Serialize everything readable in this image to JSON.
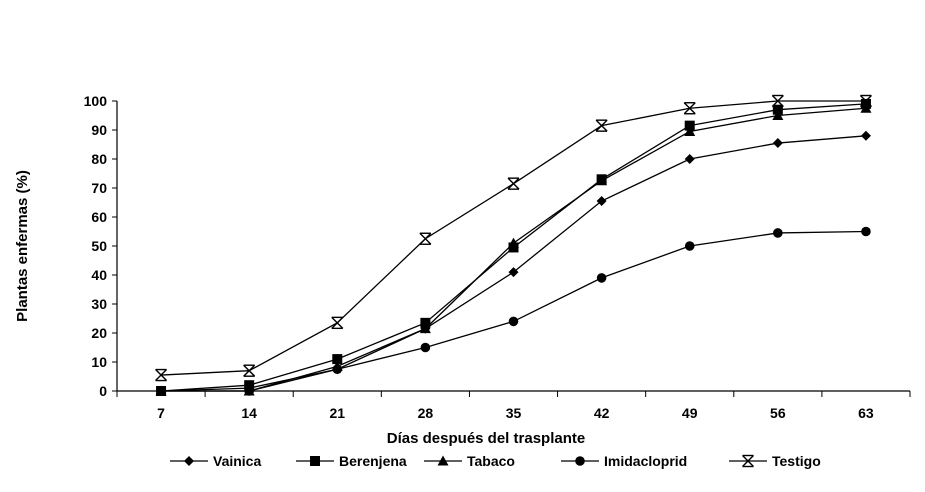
{
  "chart_data": {
    "type": "line",
    "title": "",
    "xlabel": "Días después del trasplante",
    "ylabel": "Plantas enfermas (%)",
    "categories": [
      "7",
      "14",
      "21",
      "28",
      "35",
      "42",
      "49",
      "56",
      "63"
    ],
    "ylim": [
      0,
      100
    ],
    "yticks": [
      "0",
      "10",
      "20",
      "30",
      "40",
      "50",
      "60",
      "70",
      "80",
      "90",
      "100"
    ],
    "grid": false,
    "legend_position": "bottom",
    "series": [
      {
        "name": "Vainica",
        "marker": "diamond",
        "values": [
          0,
          1,
          7.5,
          21.5,
          41,
          65.5,
          80,
          85.5,
          88
        ]
      },
      {
        "name": "Berenjena",
        "marker": "square",
        "values": [
          0,
          2,
          11,
          23.5,
          49.5,
          73,
          91.5,
          97,
          99
        ]
      },
      {
        "name": "Tabaco",
        "marker": "triangle",
        "values": [
          0,
          0,
          8.5,
          21.5,
          51,
          72.5,
          89.5,
          95,
          97.5
        ]
      },
      {
        "name": "Imidacloprid",
        "marker": "circle",
        "values": [
          0,
          0,
          7.5,
          15,
          24,
          39,
          50,
          54.5,
          55
        ]
      },
      {
        "name": "Testigo",
        "marker": "star",
        "values": [
          5.5,
          7,
          23.5,
          52.5,
          71.5,
          91.5,
          97.5,
          100,
          100
        ]
      }
    ]
  }
}
